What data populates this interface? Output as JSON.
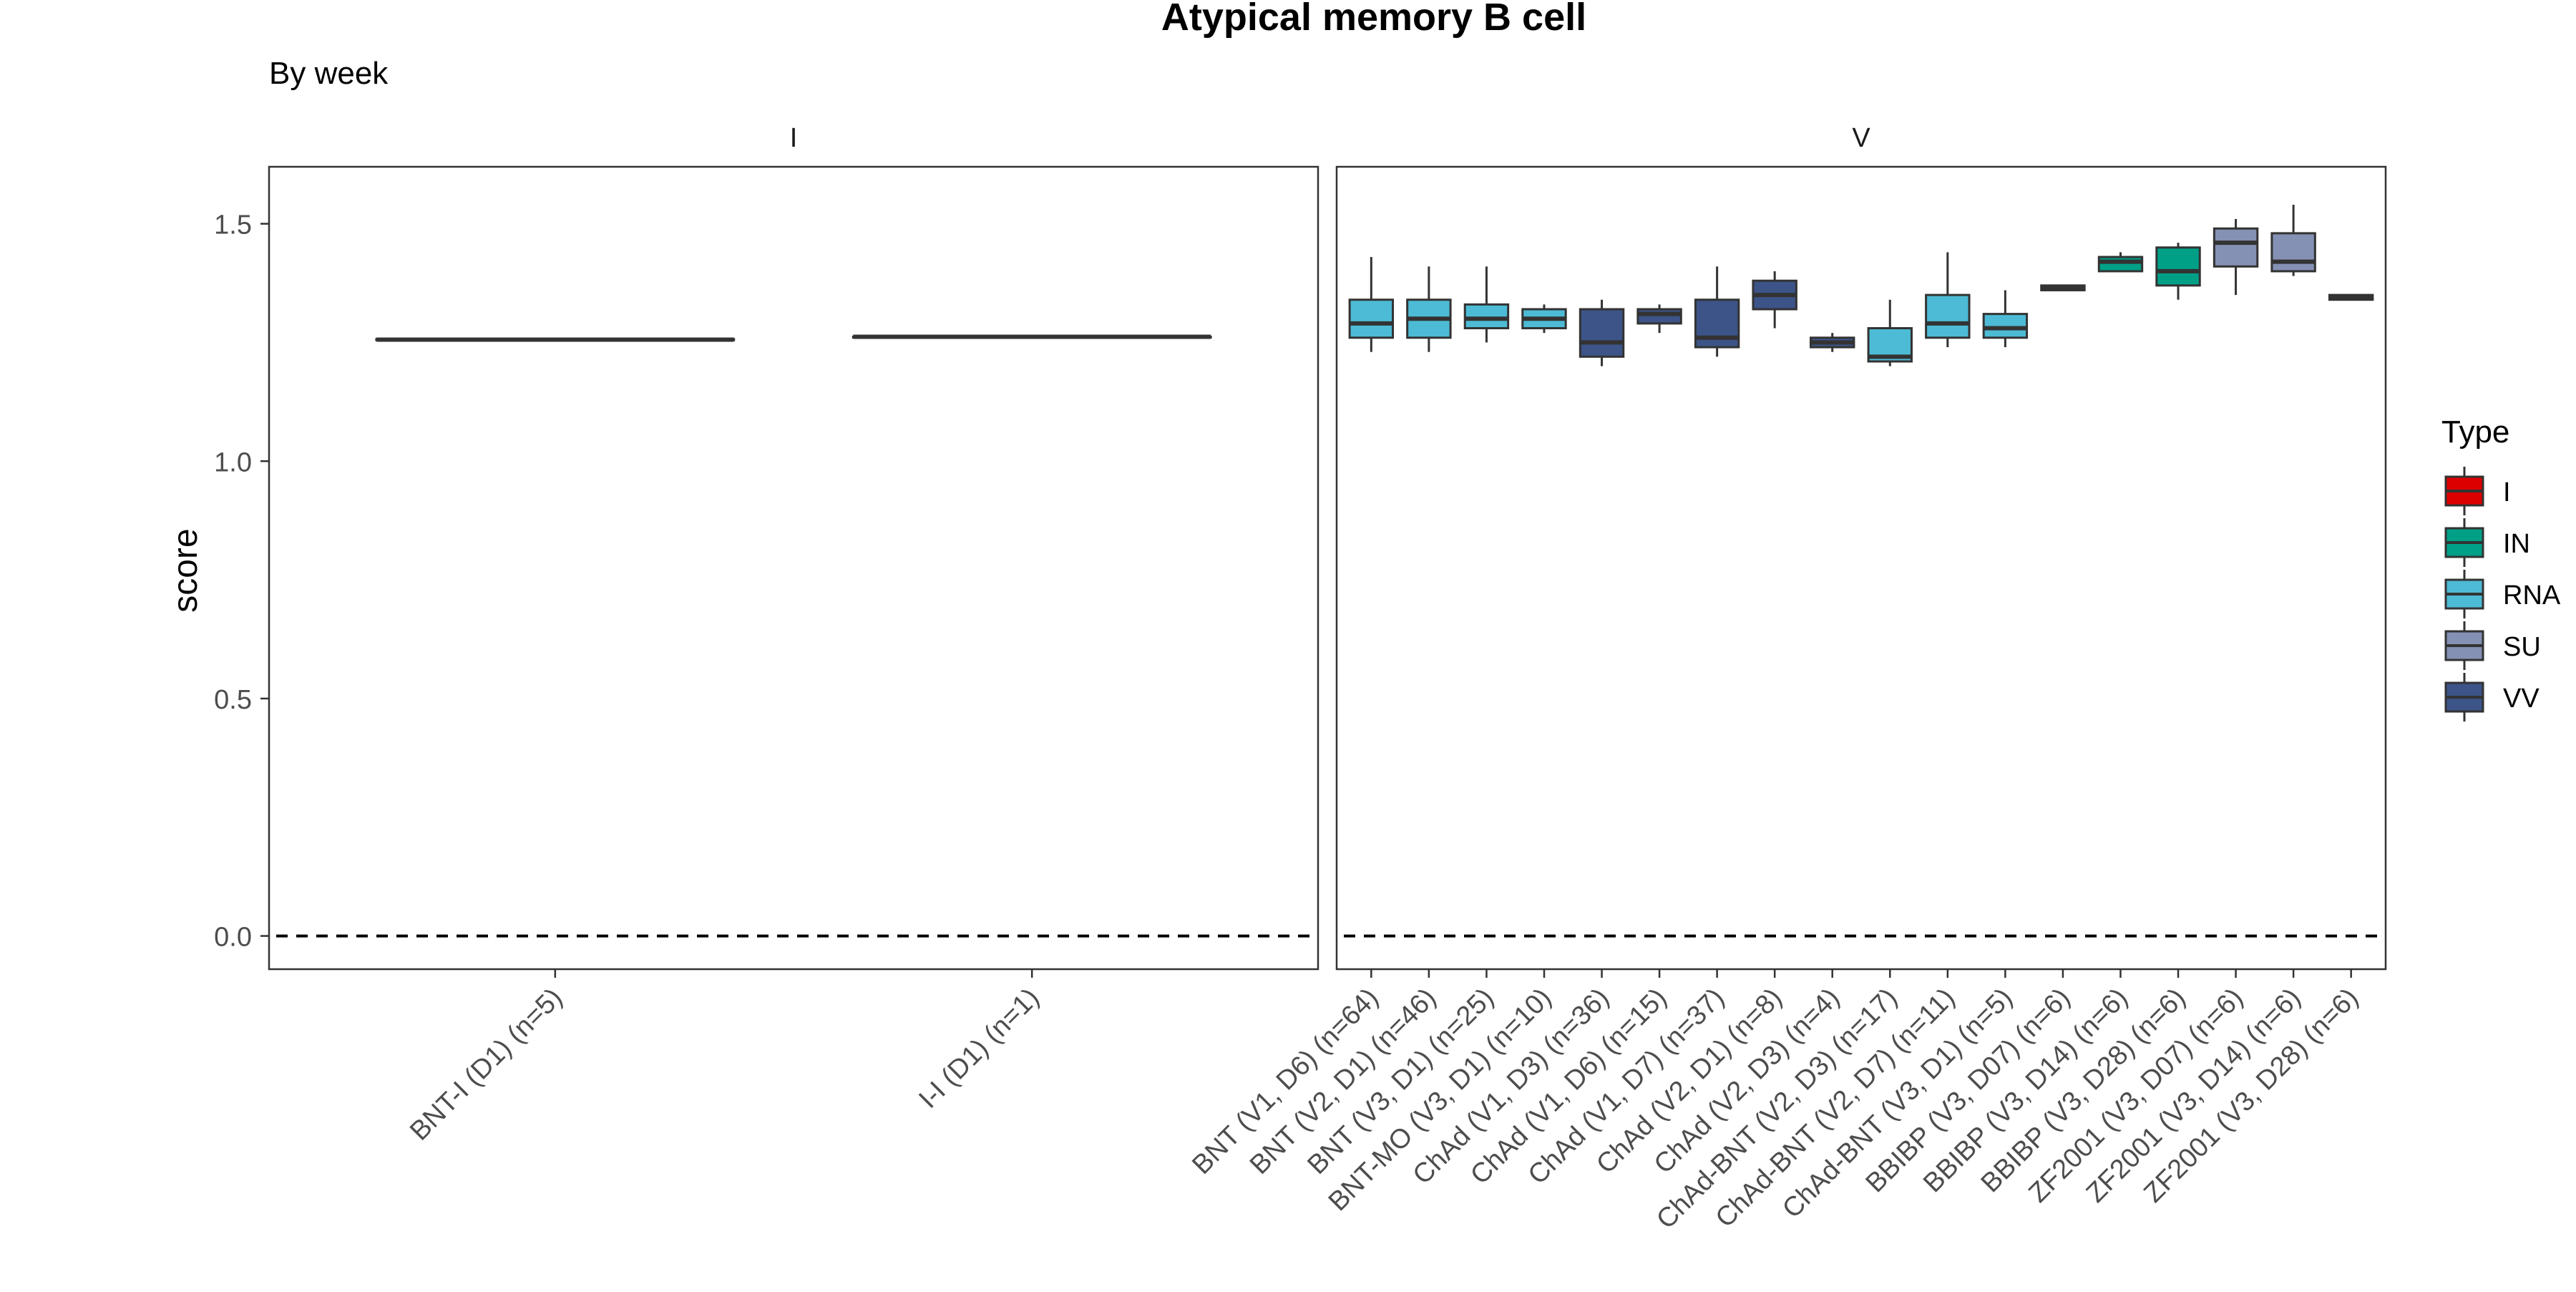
{
  "title": "Atypical memory B cell",
  "subtitle": "By week",
  "y_axis_label": "score",
  "legend": {
    "title": "Type",
    "items": [
      {
        "name": "I",
        "color": "#DC0000"
      },
      {
        "name": "IN",
        "color": "#00A087"
      },
      {
        "name": "RNA",
        "color": "#4DBBD5"
      },
      {
        "name": "SU",
        "color": "#8491B4"
      },
      {
        "name": "VV",
        "color": "#3C5488"
      }
    ]
  },
  "chart_data": {
    "type": "box",
    "ylabel": "score",
    "ylim": [
      -0.07,
      1.62
    ],
    "yticks": [
      0.0,
      0.5,
      1.0,
      1.5
    ],
    "reference_line": {
      "y": 0.0,
      "style": "dashed"
    },
    "grid": false,
    "legend_position": "right",
    "facets": [
      {
        "label": "I",
        "groups": [
          {
            "label": "BNT-I (D1) (n=5)",
            "type": "I",
            "min": 1.255,
            "q1": 1.255,
            "median": 1.256,
            "q3": 1.257,
            "max": 1.257
          },
          {
            "label": "I-I (D1) (n=1)",
            "type": "I",
            "min": 1.262,
            "q1": 1.262,
            "median": 1.262,
            "q3": 1.262,
            "max": 1.262
          }
        ]
      },
      {
        "label": "V",
        "groups": [
          {
            "label": "BNT (V1, D6) (n=64)",
            "type": "RNA",
            "min": 1.23,
            "q1": 1.26,
            "median": 1.29,
            "q3": 1.34,
            "max": 1.43
          },
          {
            "label": "BNT (V2, D1) (n=46)",
            "type": "RNA",
            "min": 1.23,
            "q1": 1.26,
            "median": 1.3,
            "q3": 1.34,
            "max": 1.41
          },
          {
            "label": "BNT (V3, D1) (n=25)",
            "type": "RNA",
            "min": 1.25,
            "q1": 1.28,
            "median": 1.3,
            "q3": 1.33,
            "max": 1.41
          },
          {
            "label": "BNT-MO (V3, D1) (n=10)",
            "type": "RNA",
            "min": 1.27,
            "q1": 1.28,
            "median": 1.3,
            "q3": 1.32,
            "max": 1.33
          },
          {
            "label": "ChAd (V1, D3) (n=36)",
            "type": "VV",
            "min": 1.2,
            "q1": 1.22,
            "median": 1.25,
            "q3": 1.32,
            "max": 1.34
          },
          {
            "label": "ChAd (V1, D6) (n=15)",
            "type": "VV",
            "min": 1.27,
            "q1": 1.29,
            "median": 1.31,
            "q3": 1.32,
            "max": 1.33
          },
          {
            "label": "ChAd (V1, D7) (n=37)",
            "type": "VV",
            "min": 1.22,
            "q1": 1.24,
            "median": 1.26,
            "q3": 1.34,
            "max": 1.41
          },
          {
            "label": "ChAd (V2, D1) (n=8)",
            "type": "VV",
            "min": 1.28,
            "q1": 1.32,
            "median": 1.35,
            "q3": 1.38,
            "max": 1.4
          },
          {
            "label": "ChAd (V2, D3) (n=4)",
            "type": "VV",
            "min": 1.23,
            "q1": 1.24,
            "median": 1.25,
            "q3": 1.26,
            "max": 1.27
          },
          {
            "label": "ChAd-BNT (V2, D3) (n=17)",
            "type": "RNA",
            "min": 1.2,
            "q1": 1.21,
            "median": 1.22,
            "q3": 1.28,
            "max": 1.34
          },
          {
            "label": "ChAd-BNT (V2, D7) (n=11)",
            "type": "RNA",
            "min": 1.24,
            "q1": 1.26,
            "median": 1.29,
            "q3": 1.35,
            "max": 1.44
          },
          {
            "label": "ChAd-BNT (V3, D1) (n=5)",
            "type": "RNA",
            "min": 1.24,
            "q1": 1.26,
            "median": 1.28,
            "q3": 1.31,
            "max": 1.36
          },
          {
            "label": "BBIBP (V3, D07) (n=6)",
            "type": "VV",
            "min": 1.36,
            "q1": 1.36,
            "median": 1.365,
            "q3": 1.37,
            "max": 1.37
          },
          {
            "label": "BBIBP (V3, D14) (n=6)",
            "type": "IN",
            "min": 1.4,
            "q1": 1.4,
            "median": 1.42,
            "q3": 1.43,
            "max": 1.44
          },
          {
            "label": "BBIBP (V3, D28) (n=6)",
            "type": "IN",
            "min": 1.34,
            "q1": 1.37,
            "median": 1.4,
            "q3": 1.45,
            "max": 1.46
          },
          {
            "label": "ZF2001 (V3, D07) (n=6)",
            "type": "SU",
            "min": 1.35,
            "q1": 1.41,
            "median": 1.46,
            "q3": 1.49,
            "max": 1.51
          },
          {
            "label": "ZF2001 (V3, D14) (n=6)",
            "type": "SU",
            "min": 1.39,
            "q1": 1.4,
            "median": 1.42,
            "q3": 1.48,
            "max": 1.54
          },
          {
            "label": "ZF2001 (V3, D28) (n=6)",
            "type": "VV",
            "min": 1.34,
            "q1": 1.34,
            "median": 1.345,
            "q3": 1.35,
            "max": 1.35
          }
        ]
      }
    ]
  }
}
